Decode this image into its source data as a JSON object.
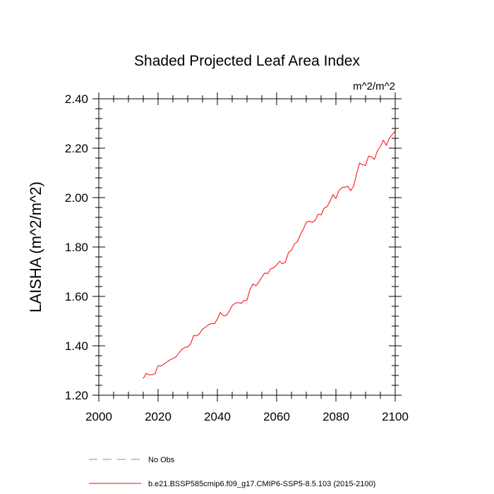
{
  "chart_data": {
    "type": "line",
    "title": "Shaded Projected Leaf Area Index",
    "units_label": "m^2/m^2",
    "ylabel": "LAISHA  (m^2/m^2)",
    "xlabel": "",
    "xlim": [
      2000,
      2100
    ],
    "ylim": [
      1.2,
      2.4
    ],
    "x_ticks": [
      2000,
      2020,
      2040,
      2060,
      2080,
      2100
    ],
    "y_ticks": [
      1.2,
      1.4,
      1.6,
      1.8,
      2.0,
      2.2,
      2.4
    ],
    "x_tick_labels": [
      "2000",
      "2020",
      "2040",
      "2060",
      "2080",
      "2100"
    ],
    "y_tick_labels": [
      "1.20",
      "1.40",
      "1.60",
      "1.80",
      "2.00",
      "2.20",
      "2.40"
    ],
    "grid": false,
    "legend_position": "bottom-left",
    "series": [
      {
        "name": "b.e21.BSSP585cmip6.f09_g17.CMIP6-SSP5-8.5.103 (2015-2100)",
        "color": "#ff0000",
        "dash": "solid",
        "x": [
          2015,
          2016,
          2017,
          2018,
          2019,
          2020,
          2021,
          2022,
          2023,
          2024,
          2025,
          2026,
          2027,
          2028,
          2029,
          2030,
          2031,
          2032,
          2033,
          2034,
          2035,
          2036,
          2037,
          2038,
          2039,
          2040,
          2041,
          2042,
          2043,
          2044,
          2045,
          2046,
          2047,
          2048,
          2049,
          2050,
          2051,
          2052,
          2053,
          2054,
          2055,
          2056,
          2057,
          2058,
          2059,
          2060,
          2061,
          2062,
          2063,
          2064,
          2065,
          2066,
          2067,
          2068,
          2069,
          2070,
          2071,
          2072,
          2073,
          2074,
          2075,
          2076,
          2077,
          2078,
          2079,
          2080,
          2081,
          2082,
          2083,
          2084,
          2085,
          2086,
          2087,
          2088,
          2089,
          2090,
          2091,
          2092,
          2093,
          2094,
          2095,
          2096,
          2097,
          2098,
          2099,
          2100
        ],
        "values": [
          1.268,
          1.288,
          1.283,
          1.283,
          1.287,
          1.32,
          1.318,
          1.326,
          1.335,
          1.343,
          1.348,
          1.355,
          1.37,
          1.385,
          1.393,
          1.396,
          1.408,
          1.442,
          1.44,
          1.45,
          1.468,
          1.475,
          1.485,
          1.49,
          1.49,
          1.508,
          1.535,
          1.522,
          1.522,
          1.54,
          1.563,
          1.572,
          1.575,
          1.572,
          1.583,
          1.585,
          1.628,
          1.65,
          1.643,
          1.658,
          1.678,
          1.695,
          1.692,
          1.712,
          1.716,
          1.727,
          1.742,
          1.732,
          1.74,
          1.778,
          1.787,
          1.812,
          1.822,
          1.85,
          1.872,
          1.9,
          1.905,
          1.9,
          1.908,
          1.933,
          1.93,
          1.957,
          1.963,
          1.985,
          2.012,
          1.996,
          2.028,
          2.04,
          2.042,
          2.046,
          2.028,
          2.048,
          2.098,
          2.14,
          2.133,
          2.13,
          2.168,
          2.165,
          2.155,
          2.19,
          2.206,
          2.232,
          2.212,
          2.24,
          2.255,
          2.27
        ]
      }
    ],
    "legend": [
      {
        "label": "No Obs",
        "color": "#8080ff",
        "dash": "dashed"
      },
      {
        "label": "b.e21.BSSP585cmip6.f09_g17.CMIP6-SSP5-8.5.103 (2015-2100)",
        "color": "#ff0000",
        "dash": "solid"
      }
    ]
  }
}
